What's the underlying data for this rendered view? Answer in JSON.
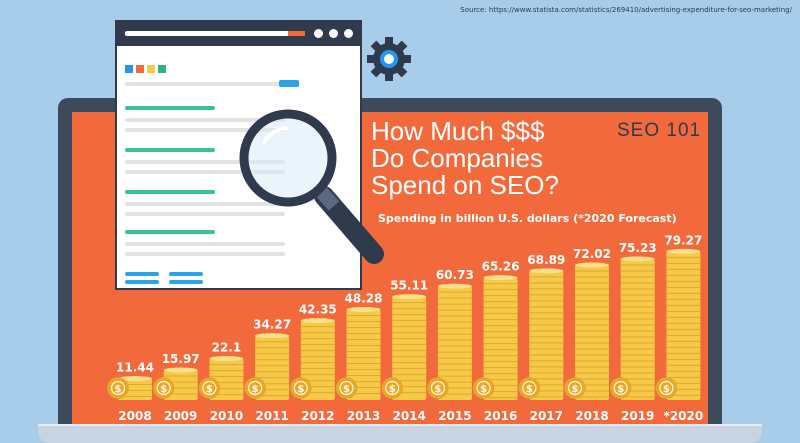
{
  "source_note": "Source:  https://www.statista.com/statistics/269410/advertising-expenditure-for-seo-marketing/",
  "brand": "SEO 101",
  "colors": {
    "background": "#a8cdea",
    "screen": "#f26a3c",
    "frame": "#3d4a5c",
    "coin": "#f7c948",
    "coin_dark": "#e0a82e",
    "coin_icon": "#f4a51c"
  },
  "chart_data": {
    "type": "bar",
    "title_lines": [
      "How Much $$$",
      "Do Companies",
      "Spend on SEO?"
    ],
    "subtitle": "Spending in billion U.S. dollars (*2020 Forecast)",
    "categories": [
      "2008",
      "2009",
      "2010",
      "2011",
      "2012",
      "2013",
      "2014",
      "2015",
      "2016",
      "2017",
      "2018",
      "2019",
      "*2020"
    ],
    "values": [
      11.44,
      15.97,
      22.1,
      34.27,
      42.35,
      48.28,
      55.11,
      60.73,
      65.26,
      68.89,
      72.02,
      75.23,
      79.27
    ],
    "value_labels": [
      "11.44",
      "15.97",
      "22.1",
      "34.27",
      "42.35",
      "48.28",
      "55.11",
      "60.73",
      "65.26",
      "68.89",
      "72.02",
      "75.23",
      "79.27"
    ],
    "ylim": [
      0,
      80
    ],
    "unit": "billion U.S. dollars",
    "xlabel": "",
    "ylabel": ""
  }
}
